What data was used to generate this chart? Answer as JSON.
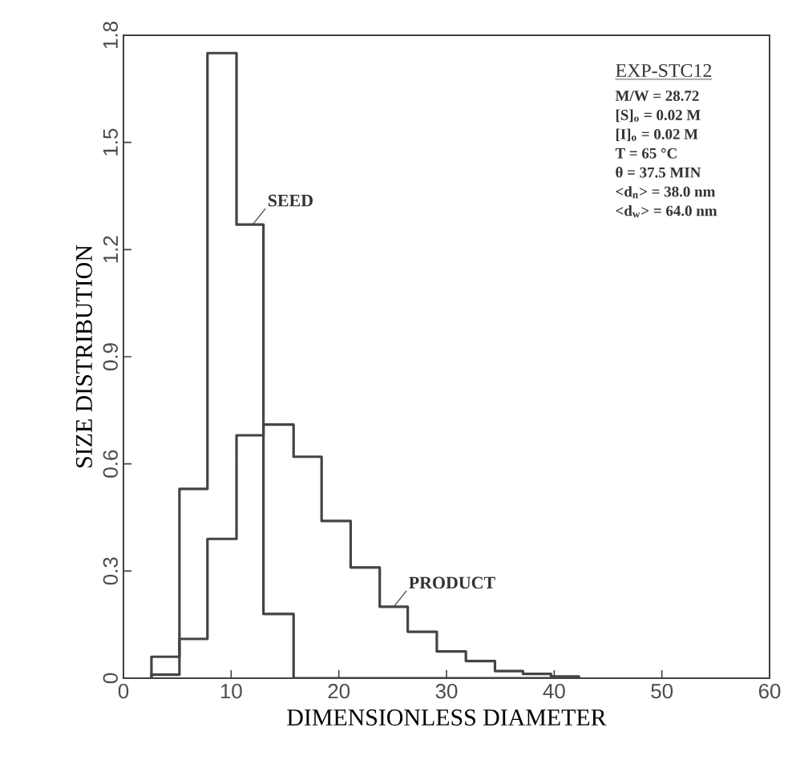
{
  "chart_data": {
    "type": "histogram",
    "xlabel": "DIMENSIONLESS DIAMETER",
    "ylabel": "SIZE DISTRIBUTION",
    "bins": [
      2.6,
      5.2,
      7.8,
      10.5,
      13.0,
      15.8,
      18.4,
      21.1,
      23.8,
      26.4,
      29.1,
      31.8,
      34.5,
      37.1,
      39.7,
      42.3
    ],
    "series": [
      {
        "name": "SEED",
        "color": "#444444",
        "values": [
          0.01,
          0.53,
          1.75,
          1.27,
          0.18,
          0,
          0,
          0,
          0,
          0,
          0,
          0,
          0,
          0,
          0
        ]
      },
      {
        "name": "PRODUCT",
        "color": "#444444",
        "values": [
          0.06,
          0.11,
          0.39,
          0.68,
          0.71,
          0.62,
          0.44,
          0.31,
          0.2,
          0.13,
          0.075,
          0.048,
          0.02,
          0.012,
          0.005
        ]
      }
    ],
    "xlim": [
      0,
      60
    ],
    "xticks": [
      0,
      10,
      20,
      30,
      40,
      50,
      60
    ],
    "ylim": [
      0,
      1.8
    ],
    "yticks": [
      0,
      0.3,
      0.6,
      0.9,
      1.2,
      1.5,
      1.8
    ],
    "annotations": [
      "EXP-STC12",
      "M/W = 28.72",
      "[S]$_{o}$ = 0.02 M",
      "[I]$_{o}$ = 0.02 M",
      "T = 65 °C",
      "θ = 37.5 MIN",
      "<d$_{n}$> = 38.0 nm",
      "<d$_{w}$> = 64.0 nm"
    ],
    "grid": false
  }
}
